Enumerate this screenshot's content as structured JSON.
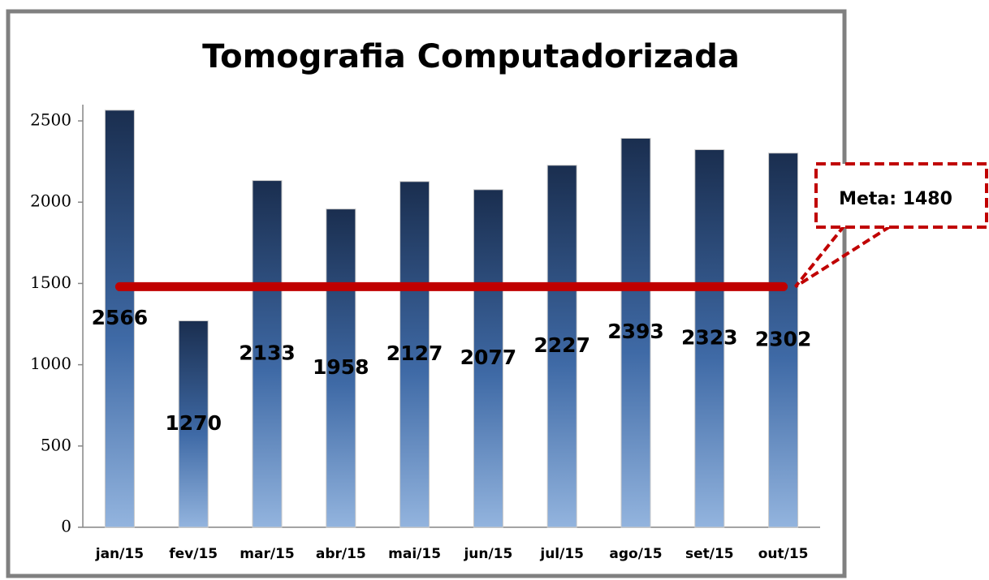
{
  "chart_data": {
    "type": "bar",
    "title": "Tomografia Computadorizada",
    "categories": [
      "jan/15",
      "fev/15",
      "mar/15",
      "abr/15",
      "mai/15",
      "jun/15",
      "jul/15",
      "ago/15",
      "set/15",
      "out/15"
    ],
    "values": [
      2566,
      1270,
      2133,
      1958,
      2127,
      2077,
      2227,
      2393,
      2323,
      2302
    ],
    "color": "#1a2e4f",
    "ylim": [
      0,
      2600
    ],
    "yticks": [
      0,
      500,
      1000,
      1500,
      2000,
      2500
    ],
    "target": {
      "value": 1480,
      "label": "Meta: 1480",
      "color": "#c00000"
    }
  }
}
